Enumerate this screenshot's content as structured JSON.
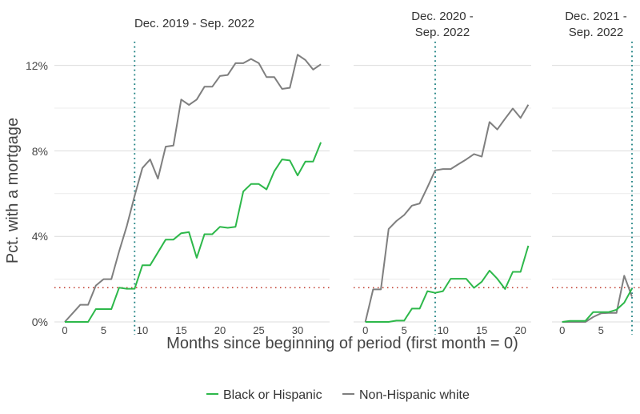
{
  "chart_data": [
    {
      "type": "line",
      "title": "Dec. 2019 - Sep. 2022",
      "x": [
        0,
        1,
        2,
        3,
        4,
        5,
        6,
        7,
        8,
        9,
        10,
        11,
        12,
        13,
        14,
        15,
        16,
        17,
        18,
        19,
        20,
        21,
        22,
        23,
        24,
        25,
        26,
        27,
        28,
        29,
        30,
        31,
        32,
        33
      ],
      "xticks": [
        0,
        5,
        10,
        15,
        20,
        25,
        30
      ],
      "series": [
        {
          "name": "Black or Hispanic",
          "color": "#2db84a",
          "values": [
            0,
            0,
            0,
            0,
            0.6,
            0.6,
            0.6,
            1.6,
            1.55,
            1.55,
            2.65,
            2.65,
            3.25,
            3.85,
            3.85,
            4.15,
            4.2,
            3.0,
            4.1,
            4.1,
            4.45,
            4.4,
            4.45,
            6.1,
            6.45,
            6.45,
            6.2,
            7.05,
            7.6,
            7.55,
            6.85,
            7.5,
            7.5,
            8.4
          ]
        },
        {
          "name": "Non-Hispanic white",
          "color": "#7f7f7f",
          "values": [
            0,
            0.4,
            0.8,
            0.8,
            1.7,
            2.0,
            2.0,
            3.3,
            4.5,
            5.9,
            7.2,
            7.6,
            6.7,
            8.2,
            8.25,
            10.4,
            10.15,
            10.4,
            11.0,
            11.0,
            11.5,
            11.55,
            12.1,
            12.1,
            12.3,
            12.1,
            11.45,
            11.45,
            10.9,
            10.95,
            12.5,
            12.25,
            11.8,
            12.05
          ]
        }
      ],
      "vline_month": 9
    },
    {
      "type": "line",
      "title_lines": [
        "Dec. 2020 -",
        "Sep. 2022"
      ],
      "x": [
        0,
        1,
        2,
        3,
        4,
        5,
        6,
        7,
        8,
        9,
        10,
        11,
        12,
        13,
        14,
        15,
        16,
        17,
        18,
        19,
        20,
        21
      ],
      "xticks": [
        0,
        5,
        10,
        15,
        20
      ],
      "series": [
        {
          "name": "Black or Hispanic",
          "color": "#2db84a",
          "values": [
            0,
            0,
            0,
            0,
            0.06,
            0.06,
            0.62,
            0.62,
            1.44,
            1.36,
            1.44,
            2.02,
            2.02,
            2.02,
            1.59,
            1.88,
            2.4,
            2.02,
            1.54,
            2.34,
            2.34,
            3.56
          ]
        },
        {
          "name": "Non-Hispanic white",
          "color": "#7f7f7f",
          "values": [
            0,
            1.52,
            1.52,
            4.35,
            4.72,
            5.0,
            5.44,
            5.54,
            6.3,
            7.09,
            7.15,
            7.15,
            7.38,
            7.6,
            7.85,
            7.73,
            9.35,
            9.0,
            9.5,
            9.98,
            9.54,
            10.16
          ]
        }
      ],
      "vline_month": 9
    },
    {
      "type": "line",
      "title_lines": [
        "Dec. 2021 -",
        "Sep. 2022"
      ],
      "x": [
        0,
        1,
        2,
        3,
        4,
        5,
        6,
        7,
        8,
        9
      ],
      "xticks": [
        0,
        5
      ],
      "series": [
        {
          "name": "Black or Hispanic",
          "color": "#2db84a",
          "values": [
            0,
            0.05,
            0.05,
            0.05,
            0.46,
            0.46,
            0.46,
            0.57,
            0.9,
            1.56
          ]
        },
        {
          "name": "Non-Hispanic white",
          "color": "#7f7f7f",
          "values": [
            0,
            0,
            0,
            0,
            0.23,
            0.4,
            0.42,
            0.42,
            2.16,
            1.18
          ]
        }
      ],
      "vline_month": 9
    }
  ],
  "shared": {
    "ylabel": "Pct. with a mortgage",
    "xlabel": "Months since beginning of period (first month = 0)",
    "yticks": [
      "0%",
      "4%",
      "8%",
      "12%"
    ],
    "ytick_values": [
      0,
      4,
      8,
      12
    ],
    "ylim": [
      -0.4,
      13.5
    ],
    "hline_value": 1.6,
    "hline_color": "#c0392b",
    "vline_color": "#1a7f80",
    "grid": true,
    "legend_position": "bottom",
    "legend": [
      {
        "label": "Black or Hispanic",
        "color": "#2db84a"
      },
      {
        "label": "Non-Hispanic white",
        "color": "#7f7f7f"
      }
    ]
  }
}
